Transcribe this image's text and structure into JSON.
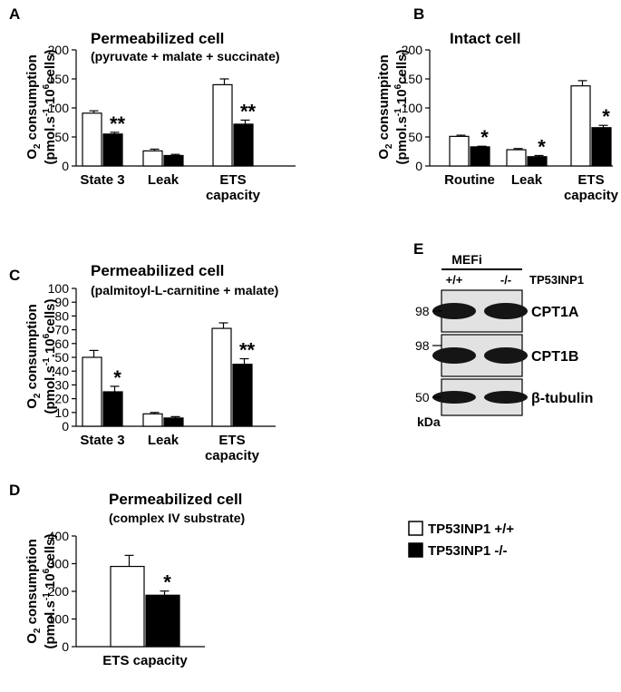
{
  "chart_data": [
    {
      "type": "bar",
      "panel": "A",
      "title": "Permeabilized cell",
      "subtitle": "(pyruvate + malate + succinate)",
      "ylabel_line1": "O2 consumption",
      "ylabel_line2": "(pmol.s-1.10⁶cells)",
      "ylim": [
        0,
        200
      ],
      "yticks": [
        "0",
        "50",
        "100",
        "150",
        "200"
      ],
      "categories": [
        [
          "State 3"
        ],
        [
          "Leak"
        ],
        [
          "ETS",
          "capacity"
        ]
      ],
      "series": [
        {
          "name": "TP53INP1 +/+",
          "values": [
            91,
            26,
            140
          ],
          "errors": [
            4,
            3,
            10
          ]
        },
        {
          "name": "TP53INP1 -/-",
          "values": [
            55,
            18,
            72
          ],
          "errors": [
            3,
            2,
            7
          ]
        }
      ],
      "significance": [
        "**",
        "",
        "**"
      ]
    },
    {
      "type": "bar",
      "panel": "B",
      "title": "Intact cell",
      "subtitle": "",
      "ylabel_line1": "O2 consumpiton",
      "ylabel_line2": "(pmol.s-1.10⁶cells)",
      "ylim": [
        0,
        200
      ],
      "yticks": [
        "0",
        "50",
        "100",
        "150",
        "200"
      ],
      "categories": [
        [
          "Routine"
        ],
        [
          "Leak"
        ],
        [
          "ETS",
          "capacity"
        ]
      ],
      "series": [
        {
          "name": "TP53INP1 +/+",
          "values": [
            51,
            28,
            138
          ],
          "errors": [
            2,
            2,
            9
          ]
        },
        {
          "name": "TP53INP1 -/-",
          "values": [
            33,
            16,
            66
          ],
          "errors": [
            1,
            2,
            4
          ]
        }
      ],
      "significance": [
        "*",
        "*",
        "*"
      ]
    },
    {
      "type": "bar",
      "panel": "C",
      "title": "Permeabilized cell",
      "subtitle": "(palmitoyl-L-carnitine + malate)",
      "ylabel_line1": "O2 consumption",
      "ylabel_line2": "(pmol.s-1.10⁶cells)",
      "ylim": [
        0,
        100
      ],
      "yticks": [
        "0",
        "10",
        "20",
        "30",
        "40",
        "50",
        "60",
        "70",
        "80",
        "90",
        "100"
      ],
      "categories": [
        [
          "State 3"
        ],
        [
          "Leak"
        ],
        [
          "ETS",
          "capacity"
        ]
      ],
      "series": [
        {
          "name": "TP53INP1 +/+",
          "values": [
            50,
            9,
            71
          ],
          "errors": [
            5,
            1,
            4
          ]
        },
        {
          "name": "TP53INP1 -/-",
          "values": [
            25,
            6,
            45
          ],
          "errors": [
            4,
            1,
            4
          ]
        }
      ],
      "significance": [
        "*",
        "",
        "**"
      ]
    },
    {
      "type": "bar",
      "panel": "D",
      "title": "Permeabilized cell",
      "subtitle": "(complex IV substrate)",
      "ylabel_line1": "O2 consumption",
      "ylabel_line2": "(pmol.s-1.10⁶cells)",
      "ylim": [
        0,
        400
      ],
      "yticks": [
        "0",
        "100",
        "200",
        "300",
        "400"
      ],
      "categories": [
        [
          "ETS capacity"
        ]
      ],
      "series": [
        {
          "name": "TP53INP1 +/+",
          "values": [
            290
          ],
          "errors": [
            40
          ]
        },
        {
          "name": "TP53INP1 -/-",
          "values": [
            186
          ],
          "errors": [
            15
          ]
        }
      ],
      "significance": [
        "*"
      ]
    }
  ],
  "western_blot": {
    "panel": "E",
    "group_label": "MEFi",
    "genotype_label": "TP53INP1",
    "lanes": [
      "+/+",
      "-/-"
    ],
    "bands": [
      {
        "label": "CPT1A",
        "marker": "98"
      },
      {
        "label": "CPT1B",
        "marker": "98"
      },
      {
        "label": "β-tubulin",
        "marker": "50"
      }
    ],
    "unit": "kDa"
  },
  "legend": {
    "items": [
      {
        "label": "TP53INP1 +/+",
        "fill": "#ffffff"
      },
      {
        "label": "TP53INP1 -/-",
        "fill": "#000000"
      }
    ]
  },
  "colors": {
    "wt": "#ffffff",
    "ko": "#000000",
    "blot_bg": "#e2e2e2",
    "band": "#151515"
  }
}
